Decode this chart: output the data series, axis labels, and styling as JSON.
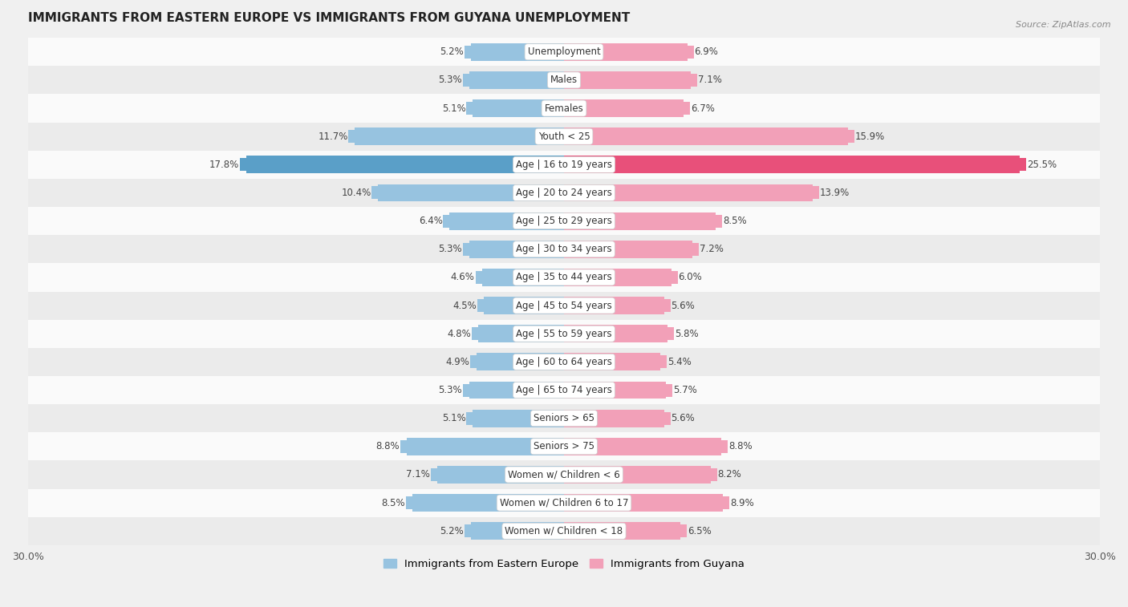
{
  "title": "IMMIGRANTS FROM EASTERN EUROPE VS IMMIGRANTS FROM GUYANA UNEMPLOYMENT",
  "source": "Source: ZipAtlas.com",
  "categories": [
    "Unemployment",
    "Males",
    "Females",
    "Youth < 25",
    "Age | 16 to 19 years",
    "Age | 20 to 24 years",
    "Age | 25 to 29 years",
    "Age | 30 to 34 years",
    "Age | 35 to 44 years",
    "Age | 45 to 54 years",
    "Age | 55 to 59 years",
    "Age | 60 to 64 years",
    "Age | 65 to 74 years",
    "Seniors > 65",
    "Seniors > 75",
    "Women w/ Children < 6",
    "Women w/ Children 6 to 17",
    "Women w/ Children < 18"
  ],
  "eastern_europe": [
    5.2,
    5.3,
    5.1,
    11.7,
    17.8,
    10.4,
    6.4,
    5.3,
    4.6,
    4.5,
    4.8,
    4.9,
    5.3,
    5.1,
    8.8,
    7.1,
    8.5,
    5.2
  ],
  "guyana": [
    6.9,
    7.1,
    6.7,
    15.9,
    25.5,
    13.9,
    8.5,
    7.2,
    6.0,
    5.6,
    5.8,
    5.4,
    5.7,
    5.6,
    8.8,
    8.2,
    8.9,
    6.5
  ],
  "eastern_europe_color": "#97c3e0",
  "guyana_color": "#f2a0b8",
  "eastern_europe_highlight_color": "#5a9fc8",
  "guyana_highlight_color": "#e8507a",
  "bar_height": 0.62,
  "bg_color": "#f0f0f0",
  "row_light": "#fafafa",
  "row_dark": "#ebebeb",
  "legend_eastern": "Immigrants from Eastern Europe",
  "legend_guyana": "Immigrants from Guyana",
  "xlim": 30.0,
  "label_fontsize": 8.5,
  "value_fontsize": 8.5,
  "title_fontsize": 11
}
